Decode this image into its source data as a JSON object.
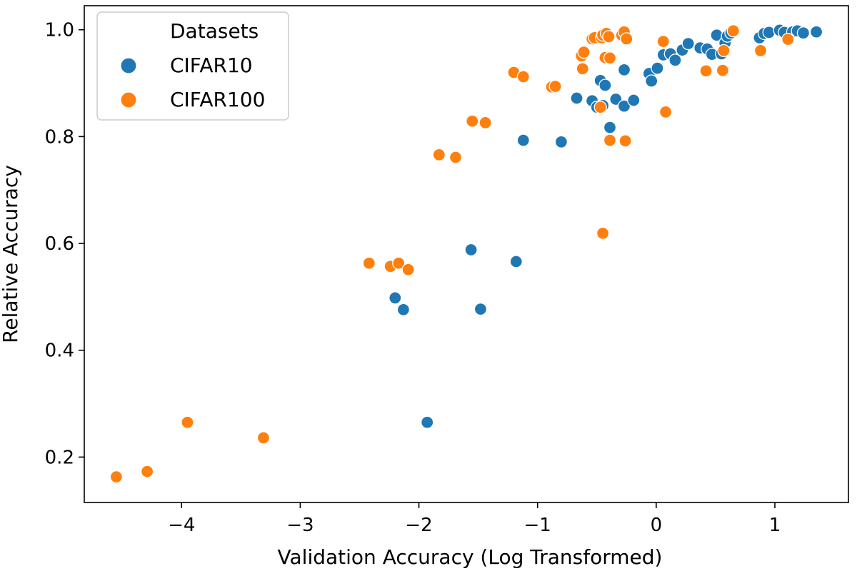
{
  "chart_data": {
    "type": "scatter",
    "title": "",
    "xlabel": "Validation Accuracy (Log Transformed)",
    "ylabel": "Relative Accuracy",
    "xlim": [
      -4.82,
      1.62
    ],
    "ylim": [
      0.115,
      1.045
    ],
    "xticks": [
      -4,
      -3,
      -2,
      -1,
      0,
      1
    ],
    "xtick_labels": [
      "−4",
      "−3",
      "−2",
      "−1",
      "0",
      "1"
    ],
    "yticks": [
      0.2,
      0.4,
      0.6,
      0.8,
      1.0
    ],
    "ytick_labels": [
      "0.2",
      "0.4",
      "0.6",
      "0.8",
      "1.0"
    ],
    "grid": false,
    "legend": {
      "title": "Datasets",
      "placement": "top-left"
    },
    "series": [
      {
        "name": "CIFAR10",
        "color": "#1f77b4",
        "points": [
          [
            -1.93,
            0.265
          ],
          [
            -2.2,
            0.498
          ],
          [
            -2.13,
            0.476
          ],
          [
            -1.56,
            0.588
          ],
          [
            -1.48,
            0.477
          ],
          [
            -1.18,
            0.566
          ],
          [
            -1.12,
            0.793
          ],
          [
            -0.8,
            0.79
          ],
          [
            -0.67,
            0.872
          ],
          [
            -0.54,
            0.867
          ],
          [
            -0.5,
            0.855
          ],
          [
            -0.45,
            0.858
          ],
          [
            -0.47,
            0.905
          ],
          [
            -0.43,
            0.896
          ],
          [
            -0.39,
            0.817
          ],
          [
            -0.34,
            0.87
          ],
          [
            -0.27,
            0.857
          ],
          [
            -0.19,
            0.868
          ],
          [
            -0.27,
            0.925
          ],
          [
            -0.06,
            0.918
          ],
          [
            -0.04,
            0.904
          ],
          [
            0.01,
            0.928
          ],
          [
            0.06,
            0.953
          ],
          [
            0.12,
            0.955
          ],
          [
            0.16,
            0.943
          ],
          [
            0.22,
            0.962
          ],
          [
            0.27,
            0.974
          ],
          [
            0.37,
            0.966
          ],
          [
            0.43,
            0.964
          ],
          [
            0.47,
            0.954
          ],
          [
            0.51,
            0.99
          ],
          [
            0.55,
            0.955
          ],
          [
            0.58,
            0.975
          ],
          [
            0.6,
            0.988
          ],
          [
            0.63,
            0.994
          ],
          [
            0.87,
            0.985
          ],
          [
            0.91,
            0.993
          ],
          [
            0.95,
            0.995
          ],
          [
            1.04,
            0.999
          ],
          [
            1.08,
            0.995
          ],
          [
            1.15,
            0.996
          ],
          [
            1.19,
            0.998
          ],
          [
            1.24,
            0.994
          ],
          [
            1.35,
            0.996
          ]
        ]
      },
      {
        "name": "CIFAR100",
        "color": "#ff7f0e",
        "points": [
          [
            -4.55,
            0.163
          ],
          [
            -4.29,
            0.173
          ],
          [
            -3.95,
            0.265
          ],
          [
            -3.31,
            0.236
          ],
          [
            -2.42,
            0.563
          ],
          [
            -2.24,
            0.557
          ],
          [
            -2.17,
            0.563
          ],
          [
            -2.09,
            0.551
          ],
          [
            -1.83,
            0.766
          ],
          [
            -1.69,
            0.761
          ],
          [
            -1.55,
            0.829
          ],
          [
            -1.44,
            0.826
          ],
          [
            -1.2,
            0.92
          ],
          [
            -1.12,
            0.912
          ],
          [
            -0.88,
            0.893
          ],
          [
            -0.85,
            0.894
          ],
          [
            -0.63,
            0.951
          ],
          [
            -0.61,
            0.958
          ],
          [
            -0.62,
            0.927
          ],
          [
            -0.54,
            0.983
          ],
          [
            -0.52,
            0.985
          ],
          [
            -0.46,
            0.985
          ],
          [
            -0.45,
            0.99
          ],
          [
            -0.42,
            0.993
          ],
          [
            -0.4,
            0.987
          ],
          [
            -0.43,
            0.948
          ],
          [
            -0.39,
            0.947
          ],
          [
            -0.47,
            0.855
          ],
          [
            -0.45,
            0.619
          ],
          [
            -0.39,
            0.793
          ],
          [
            -0.26,
            0.792
          ],
          [
            -0.29,
            0.99
          ],
          [
            -0.27,
            0.996
          ],
          [
            -0.25,
            0.983
          ],
          [
            0.06,
            0.978
          ],
          [
            0.08,
            0.846
          ],
          [
            0.42,
            0.923
          ],
          [
            0.56,
            0.924
          ],
          [
            0.57,
            0.961
          ],
          [
            0.65,
            0.998
          ],
          [
            0.88,
            0.961
          ],
          [
            1.11,
            0.982
          ]
        ]
      }
    ]
  }
}
